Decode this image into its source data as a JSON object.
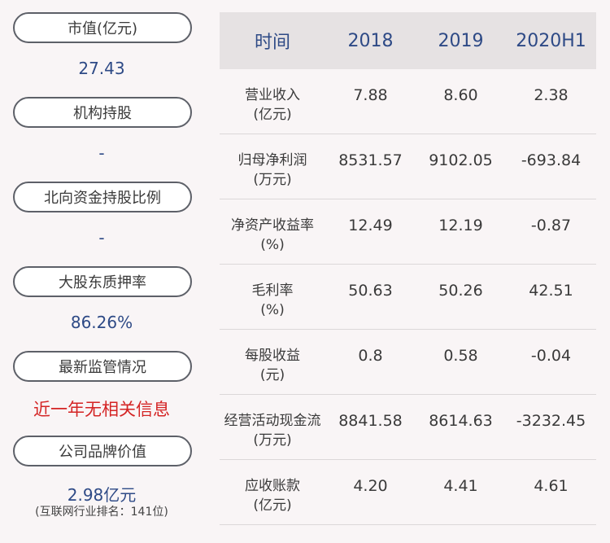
{
  "left": {
    "items": [
      {
        "label": "市值(亿元)",
        "value": "27.43"
      },
      {
        "label": "机构持股",
        "value": "-"
      },
      {
        "label": "北向资金持股比例",
        "value": "-"
      },
      {
        "label": "大股东质押率",
        "value": "86.26%"
      },
      {
        "label": "最新监管情况",
        "value": "近一年无相关信息"
      },
      {
        "label": "公司品牌价值",
        "value": "2.98亿元",
        "note": "(互联网行业排名：141位)"
      }
    ]
  },
  "table": {
    "headers": [
      "时间",
      "2018",
      "2019",
      "2020H1"
    ],
    "rows": [
      {
        "name": "营业收入",
        "unit": "(亿元)",
        "values": [
          "7.88",
          "8.60",
          "2.38"
        ]
      },
      {
        "name": "归母净利润",
        "unit": "(万元)",
        "values": [
          "8531.57",
          "9102.05",
          "-693.84"
        ]
      },
      {
        "name": "净资产收益率",
        "unit": "(%)",
        "values": [
          "12.49",
          "12.19",
          "-0.87"
        ]
      },
      {
        "name": "毛利率",
        "unit": "(%)",
        "values": [
          "50.63",
          "50.26",
          "42.51"
        ]
      },
      {
        "name": "每股收益",
        "unit": "(元)",
        "values": [
          "0.8",
          "0.58",
          "-0.04"
        ]
      },
      {
        "name": "经营活动现金流",
        "unit": "(万元)",
        "values": [
          "8841.58",
          "8614.63",
          "-3232.45"
        ]
      },
      {
        "name": "应收账款",
        "unit": "(亿元)",
        "values": [
          "4.20",
          "4.41",
          "4.61"
        ]
      }
    ]
  }
}
